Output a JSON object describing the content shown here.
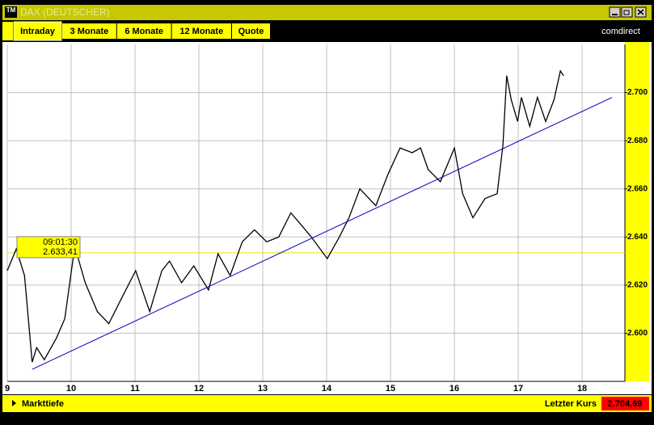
{
  "window": {
    "icon": "TM",
    "title": "DAX (DEUTSCHER)"
  },
  "tabs": [
    "Intraday",
    "3 Monate",
    "6 Monate",
    "12 Monate",
    "Quote"
  ],
  "logo": "comdirect",
  "chart_data": {
    "type": "line",
    "x": [
      9.0,
      9.14,
      9.27,
      9.39,
      9.46,
      9.58,
      9.77,
      9.9,
      10.03,
      10.09,
      10.22,
      10.41,
      10.59,
      10.78,
      11.01,
      11.23,
      11.42,
      11.54,
      11.73,
      11.92,
      12.15,
      12.3,
      12.49,
      12.68,
      12.87,
      13.06,
      13.25,
      13.44,
      13.57,
      13.76,
      14.01,
      14.2,
      14.35,
      14.52,
      14.77,
      14.96,
      15.15,
      15.34,
      15.47,
      15.59,
      15.78,
      16.0,
      16.13,
      16.29,
      16.48,
      16.67,
      16.76,
      16.82,
      16.89,
      16.99,
      17.05,
      17.18,
      17.3,
      17.43,
      17.56,
      17.66,
      17.71
    ],
    "series": [
      {
        "color": "#000000",
        "values": [
          2626,
          2635,
          2624,
          2588,
          2594,
          2589,
          2598,
          2606,
          2631,
          2633,
          2621,
          2609,
          2604,
          2614,
          2626,
          2609,
          2626,
          2630,
          2621,
          2628,
          2618,
          2633,
          2624,
          2638,
          2643,
          2638,
          2640,
          2650,
          2646,
          2640,
          2631,
          2640,
          2648,
          2660,
          2653,
          2666,
          2677,
          2675,
          2677,
          2668,
          2663,
          2677,
          2658,
          2648,
          2656,
          2658,
          2678,
          2707,
          2697,
          2688,
          2698,
          2686,
          2698,
          2688,
          2697,
          2709,
          2707
        ]
      }
    ],
    "trendline": {
      "color": "#0000c0",
      "x": [
        9.39,
        18.47
      ],
      "values": [
        2585,
        2698
      ]
    },
    "cursor": {
      "time": "09:01:30",
      "price": {
        "value": 2633.41,
        "label": "2.633,41"
      }
    },
    "xlim": [
      9,
      18.67
    ],
    "xticks": [
      9,
      10,
      11,
      12,
      13,
      14,
      15,
      16,
      17,
      18
    ],
    "ylim": [
      2580,
      2720
    ],
    "yticks": [
      {
        "value": 2600,
        "label": "2.600"
      },
      {
        "value": 2620,
        "label": "2.620"
      },
      {
        "value": 2640,
        "label": "2.640"
      },
      {
        "value": 2660,
        "label": "2.660"
      },
      {
        "value": 2680,
        "label": "2.680"
      },
      {
        "value": 2700,
        "label": "2.700"
      }
    ],
    "grid": true
  },
  "footer": {
    "depth": "Markttiefe",
    "last_price_label": "Letzter Kurs",
    "last_price_value": "2.704,69"
  }
}
